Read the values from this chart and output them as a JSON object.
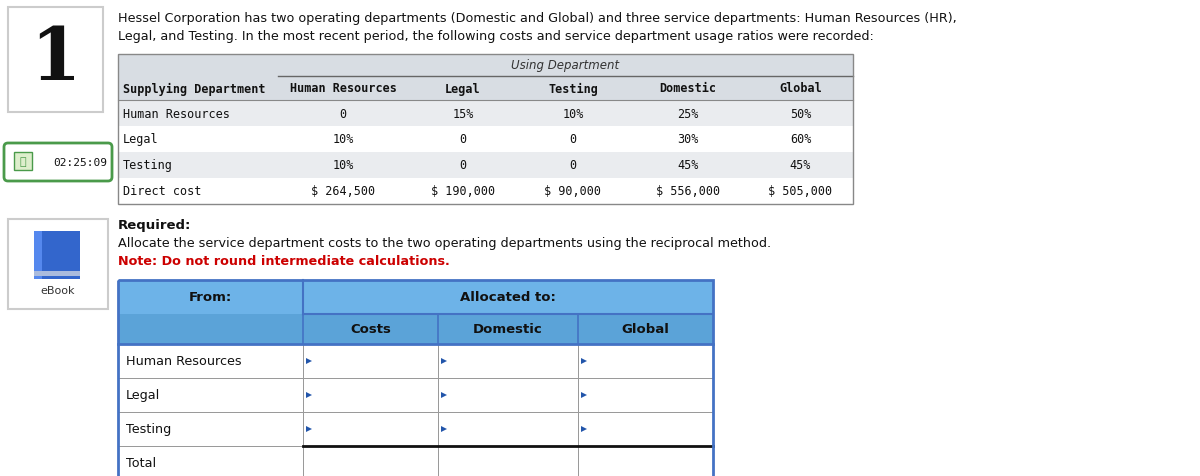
{
  "number": "1",
  "description_line1": "Hessel Corporation has two operating departments (Domestic and Global) and three service departments: Human Resources (HR),",
  "description_line2": "Legal, and Testing. In the most recent period, the following costs and service department usage ratios were recorded:",
  "table1_header_top": "Using Department",
  "table1_col_headers": [
    "Supplying Department",
    "Human Resources",
    "Legal",
    "Testing",
    "Domestic",
    "Global"
  ],
  "table1_rows": [
    [
      "Human Resources",
      "0",
      "15%",
      "10%",
      "25%",
      "50%"
    ],
    [
      "Legal",
      "10%",
      "0",
      "0",
      "30%",
      "60%"
    ],
    [
      "Testing",
      "10%",
      "0",
      "0",
      "45%",
      "45%"
    ],
    [
      "Direct cost",
      "$ 264,500",
      "$ 190,000",
      "$ 90,000",
      "$ 556,000",
      "$ 505,000"
    ]
  ],
  "required_label": "Required:",
  "required_text": "Allocate the service department costs to the two operating departments using the reciprocal method.",
  "note_text": "Note: Do not round intermediate calculations.",
  "table2_header_from": "From:",
  "table2_header_allocated": "Allocated to:",
  "table2_col_headers": [
    "Costs",
    "Domestic",
    "Global"
  ],
  "table2_rows": [
    "Human Resources",
    "Legal",
    "Testing",
    "Total"
  ],
  "table1_bg": "#d8dde3",
  "table1_row_bg_even": "#eaecef",
  "table1_row_bg_odd": "#ffffff",
  "header_blue_light": "#6db3e8",
  "header_blue_mid": "#5ba3d8",
  "bg_white": "#ffffff",
  "border_gray": "#999999",
  "border_blue": "#4472c4",
  "border_dark": "#333333",
  "text_dark": "#111111",
  "note_red": "#cc0000",
  "timer_green": "#4a9a4a",
  "arrow_blue": "#2255aa"
}
